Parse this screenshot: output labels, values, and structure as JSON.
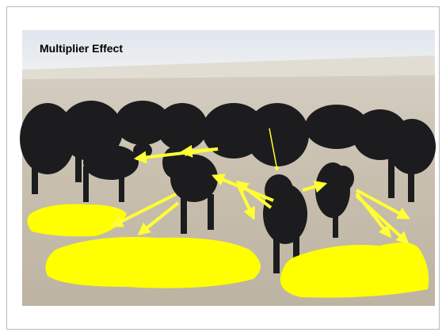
{
  "slide": {
    "title": "Multiplier Effect"
  }
}
